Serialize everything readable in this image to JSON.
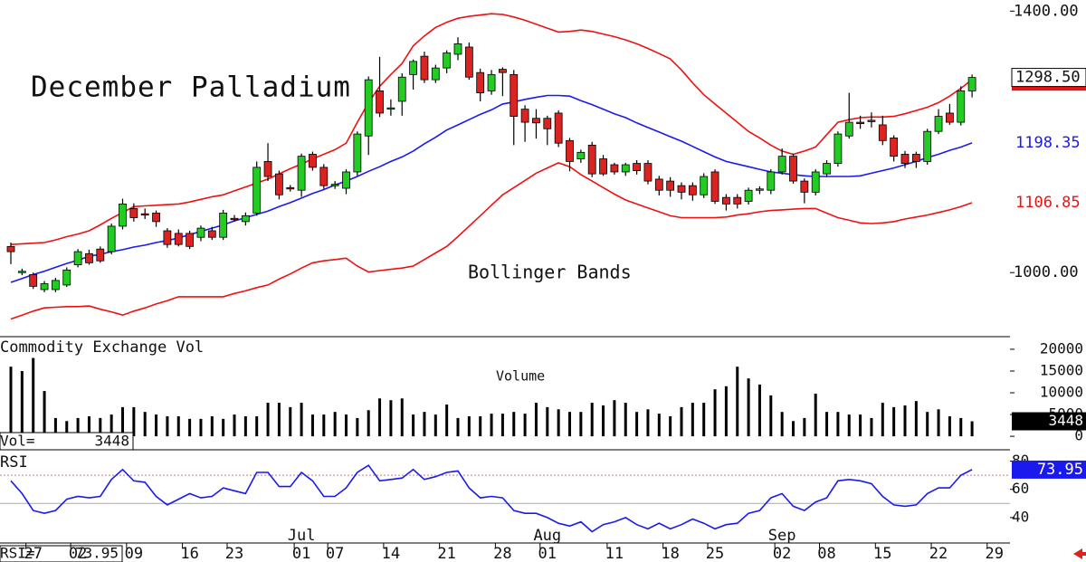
{
  "chart_data": {
    "type": "candlestick",
    "title": "December Palladium",
    "annotation": "Bollinger Bands",
    "categories": [
      null,
      null,
      "27",
      null,
      null,
      null,
      "02",
      null,
      null,
      null,
      null,
      "09",
      null,
      null,
      null,
      null,
      "16",
      null,
      null,
      null,
      "23",
      null,
      null,
      null,
      null,
      null,
      "01",
      null,
      null,
      "07",
      null,
      null,
      null,
      null,
      "14",
      null,
      null,
      null,
      null,
      "21",
      null,
      null,
      null,
      null,
      "28",
      null,
      null,
      null,
      "01",
      null,
      null,
      null,
      null,
      null,
      "11",
      null,
      null,
      null,
      null,
      "18",
      null,
      null,
      null,
      "25",
      null,
      null,
      null,
      null,
      null,
      "02",
      null,
      null,
      null,
      "08",
      null,
      null,
      null,
      null,
      "15",
      null,
      null,
      null,
      null,
      "22",
      null,
      null,
      null,
      null,
      "29"
    ],
    "months": [
      "Jul",
      "Aug",
      "Sep"
    ],
    "open": [
      1040,
      1000,
      997,
      974,
      974,
      981,
      1012,
      1029,
      1036,
      1032,
      1071,
      1098,
      1090,
      1091,
      1064,
      1060,
      1060,
      1054,
      1064,
      1054,
      1083,
      1078,
      1091,
      1170,
      1151,
      1130,
      1126,
      1181,
      1161,
      1133,
      1129,
      1154,
      1209,
      1278,
      1250,
      1262,
      1303,
      1331,
      1295,
      1313,
      1334,
      1345,
      1306,
      1278,
      1311,
      1303,
      1250,
      1236,
      1236,
      1244,
      1202,
      1174,
      1195,
      1174,
      1165,
      1154,
      1167,
      1167,
      1143,
      1140,
      1133,
      1133,
      1119,
      1154,
      1115,
      1115,
      1109,
      1126,
      1126,
      1154,
      1178,
      1140,
      1123,
      1151,
      1167,
      1209,
      1230,
      1233,
      1226,
      1206,
      1181,
      1181,
      1170,
      1216,
      1244,
      1230,
      1278,
      null,
      null
    ],
    "high": [
      1046,
      1006,
      1000,
      987,
      992,
      1008,
      1036,
      1035,
      1040,
      1075,
      1113,
      1106,
      1098,
      1095,
      1068,
      1066,
      1064,
      1072,
      1070,
      1096,
      1088,
      1092,
      1170,
      1198,
      1156,
      1134,
      1182,
      1185,
      1166,
      1140,
      1158,
      1216,
      1300,
      1330,
      1265,
      1305,
      1326,
      1338,
      1318,
      1340,
      1360,
      1352,
      1312,
      1310,
      1314,
      1310,
      1256,
      1250,
      1240,
      1248,
      1206,
      1188,
      1200,
      1180,
      1168,
      1168,
      1172,
      1172,
      1148,
      1146,
      1138,
      1138,
      1152,
      1158,
      1120,
      1120,
      1130,
      1132,
      1158,
      1190,
      1182,
      1144,
      1158,
      1172,
      1216,
      1275,
      1240,
      1245,
      1240,
      1210,
      1186,
      1185,
      1220,
      1250,
      1258,
      1285,
      1303,
      null,
      null
    ],
    "low": [
      1013,
      996,
      975,
      970,
      970,
      978,
      1008,
      1012,
      1015,
      1028,
      1066,
      1078,
      1082,
      1070,
      1038,
      1040,
      1036,
      1048,
      1050,
      1050,
      1078,
      1072,
      1087,
      1140,
      1112,
      1124,
      1116,
      1156,
      1128,
      1128,
      1120,
      1148,
      1180,
      1238,
      1240,
      1240,
      1280,
      1290,
      1290,
      1305,
      1325,
      1295,
      1262,
      1272,
      1270,
      1195,
      1200,
      1205,
      1195,
      1192,
      1155,
      1168,
      1146,
      1148,
      1150,
      1148,
      1150,
      1135,
      1118,
      1116,
      1112,
      1110,
      1114,
      1105,
      1095,
      1098,
      1104,
      1120,
      1120,
      1150,
      1136,
      1106,
      1118,
      1146,
      1162,
      1205,
      1220,
      1222,
      1195,
      1170,
      1160,
      1160,
      1165,
      1212,
      1226,
      1225,
      1268,
      null,
      null
    ],
    "close": [
      1032,
      1002,
      979,
      983,
      988,
      1004,
      1032,
      1015,
      1018,
      1071,
      1105,
      1084,
      1088,
      1078,
      1043,
      1043,
      1040,
      1068,
      1054,
      1091,
      1081,
      1087,
      1161,
      1147,
      1119,
      1128,
      1178,
      1161,
      1133,
      1135,
      1154,
      1212,
      1295,
      1244,
      1252,
      1299,
      1323,
      1295,
      1313,
      1336,
      1350,
      1299,
      1275,
      1303,
      1306,
      1239,
      1230,
      1229,
      1220,
      1198,
      1170,
      1184,
      1151,
      1151,
      1154,
      1165,
      1156,
      1140,
      1126,
      1126,
      1123,
      1119,
      1147,
      1109,
      1105,
      1105,
      1126,
      1128,
      1154,
      1178,
      1140,
      1123,
      1154,
      1167,
      1212,
      1230,
      1228,
      1231,
      1202,
      1178,
      1167,
      1170,
      1216,
      1239,
      1230,
      1278,
      1298.5,
      null,
      null
    ],
    "close_label": "1298.50",
    "up_color": "#22cc22",
    "down_color": "#dd2222",
    "upper": {
      "color": "#ee1111",
      "values": [
        1043,
        1044,
        1045,
        1046,
        1050,
        1055,
        1059,
        1064,
        1073,
        1083,
        1092,
        1101,
        1102,
        1103,
        1104,
        1105,
        1108,
        1112,
        1116,
        1119,
        1125,
        1131,
        1137,
        1143,
        1151,
        1159,
        1166,
        1174,
        1181,
        1188,
        1198,
        1230,
        1260,
        1285,
        1303,
        1320,
        1347,
        1362,
        1375,
        1383,
        1389,
        1392,
        1394,
        1396,
        1395,
        1391,
        1386,
        1380,
        1374,
        1368,
        1369,
        1371,
        1369,
        1365,
        1361,
        1356,
        1350,
        1343,
        1335,
        1327,
        1310,
        1290,
        1272,
        1258,
        1244,
        1230,
        1216,
        1206,
        1195,
        1186,
        1181,
        1186,
        1192,
        1211,
        1230,
        1234,
        1237,
        1238,
        1238,
        1239,
        1243,
        1248,
        1253,
        1260,
        1270,
        1282,
        1295,
        null,
        null
      ]
    },
    "middle": {
      "color": "#1a1aee",
      "values": [
        985,
        991,
        997,
        1002,
        1008,
        1014,
        1019,
        1025,
        1028,
        1032,
        1035,
        1039,
        1042,
        1046,
        1049,
        1053,
        1058,
        1063,
        1068,
        1073,
        1079,
        1084,
        1089,
        1094,
        1101,
        1107,
        1114,
        1121,
        1127,
        1134,
        1140,
        1147,
        1155,
        1162,
        1170,
        1177,
        1186,
        1197,
        1207,
        1218,
        1226,
        1234,
        1242,
        1249,
        1258,
        1261,
        1265,
        1268,
        1271,
        1271,
        1270,
        1263,
        1257,
        1250,
        1243,
        1237,
        1229,
        1222,
        1215,
        1208,
        1201,
        1193,
        1185,
        1177,
        1170,
        1166,
        1162,
        1158,
        1154,
        1152,
        1150,
        1148,
        1147,
        1147,
        1147,
        1147,
        1148,
        1152,
        1156,
        1160,
        1165,
        1170,
        1176,
        1181,
        1187,
        1192,
        1198.35,
        null,
        null
      ]
    },
    "lower": {
      "color": "#ee1111",
      "values": [
        929,
        935,
        941,
        946,
        947,
        948,
        948,
        949,
        944,
        940,
        935,
        941,
        946,
        952,
        957,
        963,
        963,
        963,
        963,
        963,
        968,
        972,
        977,
        981,
        990,
        998,
        1007,
        1015,
        1018,
        1020,
        1022,
        1010,
        1001,
        1003,
        1005,
        1007,
        1010,
        1020,
        1030,
        1040,
        1055,
        1071,
        1087,
        1103,
        1119,
        1130,
        1141,
        1152,
        1160,
        1168,
        1162,
        1150,
        1140,
        1130,
        1120,
        1111,
        1105,
        1099,
        1093,
        1087,
        1084,
        1084,
        1084,
        1084,
        1085,
        1088,
        1090,
        1093,
        1095,
        1096,
        1097,
        1098,
        1098,
        1091,
        1084,
        1080,
        1076,
        1075,
        1076,
        1078,
        1082,
        1085,
        1088,
        1092,
        1096,
        1101,
        1106.85,
        null,
        null
      ]
    },
    "ylim": [
      902,
      1417
    ],
    "yticks": [
      {
        "value": 1000,
        "label": "1000.00"
      },
      {
        "value": 1400,
        "label": "1400.00"
      }
    ],
    "volume": {
      "title": "Commodity Exchange Vol",
      "label": "Volume",
      "readout": "Vol=",
      "color": "#000000",
      "values": [
        16000,
        15000,
        18000,
        10400,
        4200,
        3500,
        4200,
        4600,
        4200,
        5000,
        6700,
        6700,
        5600,
        5000,
        4600,
        4600,
        4000,
        4000,
        4600,
        4000,
        5000,
        4600,
        4600,
        7700,
        7700,
        6700,
        7700,
        5000,
        5000,
        5600,
        5000,
        4200,
        6000,
        8700,
        8300,
        8700,
        5000,
        5600,
        5000,
        7300,
        4200,
        4600,
        4600,
        5200,
        5200,
        5600,
        5200,
        7700,
        6700,
        6200,
        5600,
        5600,
        7700,
        7100,
        8300,
        7700,
        5600,
        6200,
        5200,
        4600,
        6700,
        7700,
        7700,
        10800,
        11500,
        16000,
        13300,
        11900,
        9400,
        5600,
        3500,
        4200,
        9800,
        5600,
        5600,
        5000,
        5000,
        4200,
        7700,
        6700,
        7100,
        8100,
        5600,
        6200,
        4600,
        4200,
        3448,
        null,
        null
      ],
      "ylim": [
        -3100,
        22900
      ],
      "yticks": [
        0,
        5000,
        10000,
        15000,
        20000
      ]
    },
    "rsi": {
      "title": "RSI",
      "readout": "RSI=",
      "color": "#1a1aee",
      "values": [
        66,
        57,
        45,
        43,
        45,
        53,
        55,
        54,
        55,
        67,
        74,
        66,
        65,
        55,
        49,
        53,
        57,
        54,
        55,
        61,
        59,
        57,
        72,
        72,
        62,
        62,
        72,
        66,
        55,
        55,
        61,
        72,
        77,
        66,
        67,
        68,
        74,
        67,
        69,
        72,
        73,
        61,
        54,
        55,
        54,
        45,
        43,
        43,
        40,
        36,
        34,
        37,
        30,
        35,
        37,
        40,
        35,
        32,
        36,
        32,
        35,
        39,
        36,
        32,
        35,
        36,
        43,
        45,
        54,
        57,
        48,
        45,
        51,
        54,
        66,
        67,
        66,
        64,
        55,
        49,
        48,
        49,
        57,
        61,
        61,
        70,
        73.95,
        null,
        null
      ],
      "ylim": [
        22,
        88
      ],
      "yticks": [
        40,
        60,
        80
      ],
      "levels": [
        70,
        50
      ],
      "level_colors": [
        "#e07070",
        "#aaaaaa"
      ]
    }
  }
}
